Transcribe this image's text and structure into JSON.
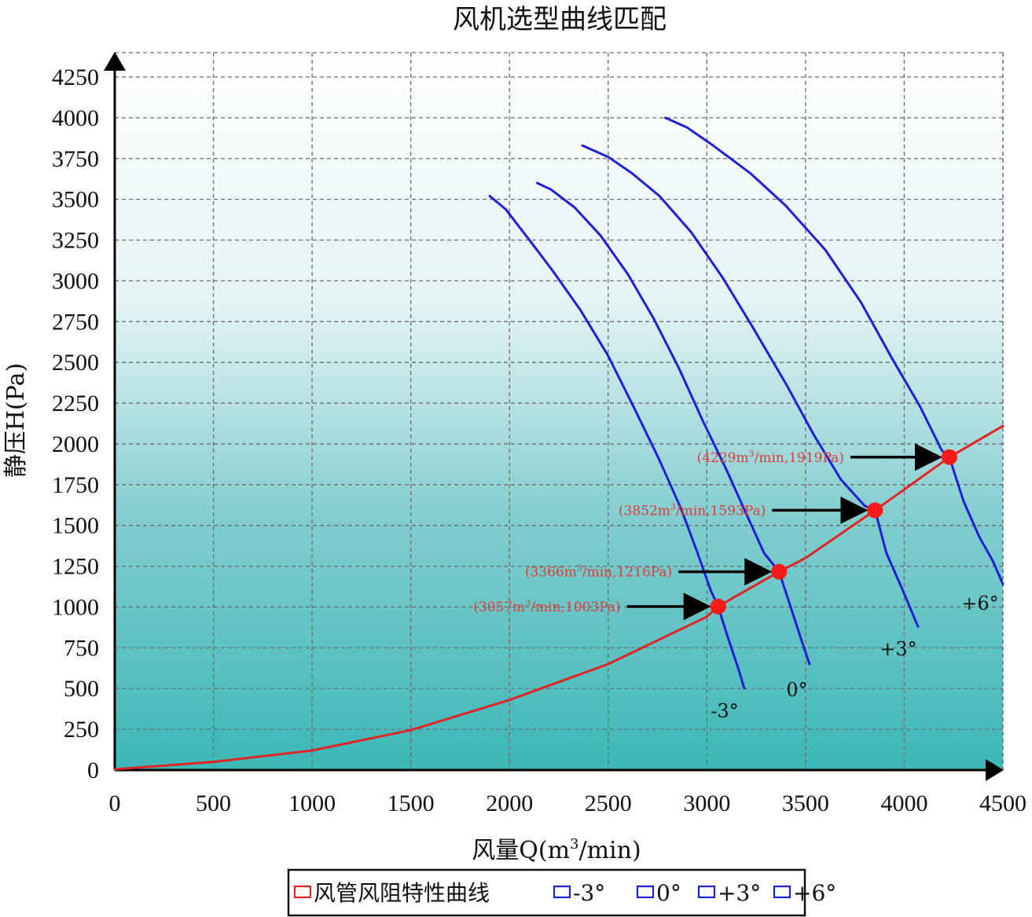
{
  "chart_data": {
    "type": "line",
    "title": "风机选型曲线匹配",
    "xlabel": "风量Q(m3/min)",
    "ylabel": "静压H(Pa)",
    "xlim": [
      0,
      4500
    ],
    "ylim": [
      0,
      4250
    ],
    "x_ticks": [
      0,
      500,
      1000,
      1500,
      2000,
      2500,
      3000,
      3500,
      4000,
      4500
    ],
    "y_ticks": [
      0,
      250,
      500,
      750,
      1000,
      1250,
      1500,
      1750,
      2000,
      2250,
      2500,
      2750,
      3000,
      3250,
      3500,
      3750,
      4000,
      4250
    ],
    "grid": true,
    "colors": {
      "resistance": "#e02424",
      "fan": "#1f1fd6",
      "point": "#ff1a1a",
      "bg_top": "#ffffff",
      "bg_bottom": "#3cb7b7"
    },
    "series": [
      {
        "name": "风管风阻特性曲线",
        "color": "#e02424",
        "points": [
          [
            0,
            5
          ],
          [
            500,
            50
          ],
          [
            1000,
            120
          ],
          [
            1500,
            245
          ],
          [
            2000,
            430
          ],
          [
            2500,
            650
          ],
          [
            3000,
            940
          ],
          [
            3057,
            1003
          ],
          [
            3366,
            1216
          ],
          [
            3500,
            1300
          ],
          [
            3852,
            1593
          ],
          [
            4000,
            1720
          ],
          [
            4229,
            1919
          ],
          [
            4500,
            2110
          ]
        ]
      },
      {
        "name": "-3°",
        "color": "#1f1fd6",
        "points": [
          [
            1900,
            3520
          ],
          [
            1980,
            3440
          ],
          [
            2050,
            3330
          ],
          [
            2120,
            3220
          ],
          [
            2220,
            3060
          ],
          [
            2360,
            2820
          ],
          [
            2500,
            2540
          ],
          [
            2640,
            2200
          ],
          [
            2760,
            1900
          ],
          [
            2870,
            1600
          ],
          [
            2950,
            1340
          ],
          [
            3020,
            1100
          ],
          [
            3057,
            1003
          ],
          [
            3110,
            800
          ],
          [
            3160,
            620
          ],
          [
            3190,
            500
          ]
        ]
      },
      {
        "name": "0°",
        "color": "#1f1fd6",
        "points": [
          [
            2140,
            3600
          ],
          [
            2210,
            3560
          ],
          [
            2330,
            3450
          ],
          [
            2460,
            3280
          ],
          [
            2600,
            3040
          ],
          [
            2730,
            2770
          ],
          [
            2860,
            2460
          ],
          [
            2980,
            2140
          ],
          [
            3100,
            1840
          ],
          [
            3200,
            1570
          ],
          [
            3290,
            1330
          ],
          [
            3366,
            1216
          ],
          [
            3430,
            980
          ],
          [
            3470,
            830
          ],
          [
            3520,
            650
          ]
        ]
      },
      {
        "name": "+3°",
        "color": "#1f1fd6",
        "points": [
          [
            2370,
            3830
          ],
          [
            2500,
            3760
          ],
          [
            2620,
            3660
          ],
          [
            2760,
            3520
          ],
          [
            2920,
            3300
          ],
          [
            3080,
            3020
          ],
          [
            3240,
            2700
          ],
          [
            3400,
            2370
          ],
          [
            3540,
            2060
          ],
          [
            3680,
            1780
          ],
          [
            3800,
            1620
          ],
          [
            3852,
            1593
          ],
          [
            3910,
            1330
          ],
          [
            3990,
            1110
          ],
          [
            4070,
            880
          ]
        ]
      },
      {
        "name": "+6°",
        "color": "#1f1fd6",
        "points": [
          [
            2790,
            4000
          ],
          [
            2900,
            3940
          ],
          [
            3020,
            3840
          ],
          [
            3220,
            3660
          ],
          [
            3400,
            3460
          ],
          [
            3600,
            3190
          ],
          [
            3780,
            2870
          ],
          [
            3940,
            2520
          ],
          [
            4080,
            2230
          ],
          [
            4190,
            1960
          ],
          [
            4229,
            1919
          ],
          [
            4300,
            1650
          ],
          [
            4380,
            1430
          ],
          [
            4450,
            1280
          ],
          [
            4500,
            1140
          ]
        ]
      }
    ],
    "operating_points": [
      {
        "x": 3057,
        "y": 1003,
        "label": "(3057m3/min,1003Pa)"
      },
      {
        "x": 3366,
        "y": 1216,
        "label": "(3366m3/min,1216Pa)"
      },
      {
        "x": 3852,
        "y": 1593,
        "label": "(3852m3/min,1593Pa)"
      },
      {
        "x": 4229,
        "y": 1919,
        "label": "(4229m3/min,1919Pa)"
      }
    ],
    "curve_labels": [
      "-3°",
      "0°",
      "+3°",
      "+6°"
    ],
    "legend": {
      "placement": "bottom",
      "entries": [
        "风管风阻特性曲线",
        "-3°",
        "0°",
        "+3°",
        "+6°"
      ]
    }
  }
}
